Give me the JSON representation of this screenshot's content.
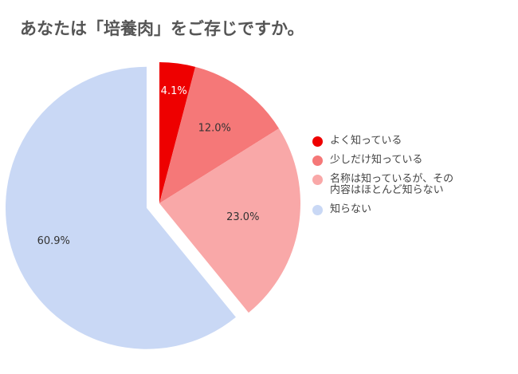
{
  "chart_data": {
    "type": "pie",
    "title": "あなたは「培養肉」をご存じですか。",
    "categories": [
      "よく知っている",
      "少しだけ知っている",
      "名称は知っているが、その\n内容はほとんど知らない",
      "知らない"
    ],
    "values": [
      4.1,
      12.0,
      23.0,
      60.9
    ],
    "value_labels": [
      "4.1%",
      "12.0%",
      "23.0%",
      "60.9%"
    ],
    "colors": [
      "#ee0000",
      "#f57878",
      "#f9a8a8",
      "#c9d8f5"
    ],
    "label_colors": [
      "#ffffff",
      "#333333",
      "#333333",
      "#333333"
    ],
    "exploded": [
      false,
      false,
      false,
      true
    ],
    "legend_position": "right",
    "start_angle": "top",
    "direction": "clockwise"
  }
}
